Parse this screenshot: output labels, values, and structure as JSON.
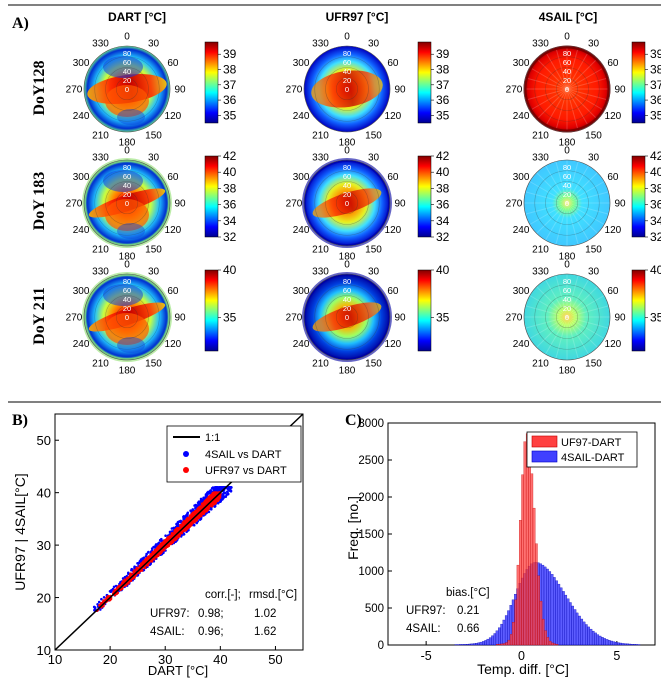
{
  "panel_labels": {
    "a": "A)",
    "b": "B)",
    "c": "C)"
  },
  "polar_grid": {
    "angle_labels": [
      "0",
      "30",
      "60",
      "90",
      "120",
      "150",
      "180",
      "210",
      "240",
      "270",
      "300",
      "330"
    ],
    "radial_labels": [
      "80",
      "60",
      "40",
      "20",
      "0"
    ]
  },
  "colormap": [
    "#00008f",
    "#0000ff",
    "#0080ff",
    "#00ffff",
    "#80ff80",
    "#ffff00",
    "#ff8000",
    "#ff0000",
    "#800000"
  ],
  "chart_data": [
    {
      "type": "heatmap",
      "subtype": "polar",
      "columns": [
        "DART [°C]",
        "UFR97 [°C]",
        "4SAIL [°C]"
      ],
      "rows": [
        "DoY128",
        "DoY 183",
        "DoY 211"
      ],
      "colorbars": [
        {
          "ticks": [
            "39",
            "38",
            "37",
            "36",
            "35"
          ],
          "range": [
            34.5,
            39.8
          ]
        },
        {
          "ticks": [
            "42",
            "40",
            "38",
            "36",
            "34",
            "32"
          ],
          "range": [
            32,
            42
          ]
        },
        {
          "ticks": [
            "40",
            "35"
          ],
          "range": [
            31.5,
            40
          ]
        }
      ]
    },
    {
      "type": "scatter",
      "ylabel": "UFR97 | 4SAIL[°C]",
      "xlabel": "DART [°C]",
      "xlim": [
        10,
        55
      ],
      "ylim": [
        10,
        55
      ],
      "xticks": [
        "10",
        "20",
        "30",
        "40",
        "50"
      ],
      "yticks": [
        "10",
        "20",
        "30",
        "40",
        "50"
      ],
      "legend": [
        "1:1",
        "4SAIL vs DART",
        "UFR97 vs DART"
      ],
      "legend_placement": "top-right",
      "stats_header": [
        "corr.[-];",
        "rmsd.[°C]"
      ],
      "stats": [
        {
          "name": "UFR97:",
          "corr": "0.98;",
          "rmsd": "1.02"
        },
        {
          "name": "4SAIL:",
          "corr": "0.96;",
          "rmsd": "1.62"
        }
      ],
      "series": [
        {
          "name": "4SAIL vs DART",
          "color": "#0000ff",
          "x_range": [
            17,
            42
          ],
          "y_range": [
            17.5,
            41
          ]
        },
        {
          "name": "UFR97 vs DART",
          "color": "#ff0000",
          "x_range": [
            17,
            40
          ],
          "y_range": [
            17.5,
            40
          ]
        }
      ]
    },
    {
      "type": "bar",
      "subtype": "histogram",
      "ylabel": "Freq. [no.]",
      "xlabel": "Temp. diff. [°C]",
      "xlim": [
        -7,
        7
      ],
      "ylim": [
        0,
        3000
      ],
      "xticks": [
        "-5",
        "0",
        "5"
      ],
      "yticks": [
        "0",
        "500",
        "1000",
        "1500",
        "2000",
        "2500",
        "3000"
      ],
      "legend": [
        "UF97-DART",
        "4SAIL-DART"
      ],
      "legend_placement": "top-right",
      "bias_title": "bias.[°C]",
      "bias": [
        {
          "name": "UFR97:",
          "value": "0.21"
        },
        {
          "name": "4SAIL:",
          "value": "0.66"
        }
      ],
      "series": [
        {
          "name": "UF97-DART",
          "color": "#ff4040",
          "mean": 0.21,
          "peak": 2750
        },
        {
          "name": "4SAIL-DART",
          "color": "#4040ff",
          "mean": 0.66,
          "peak": 1080
        }
      ]
    }
  ]
}
